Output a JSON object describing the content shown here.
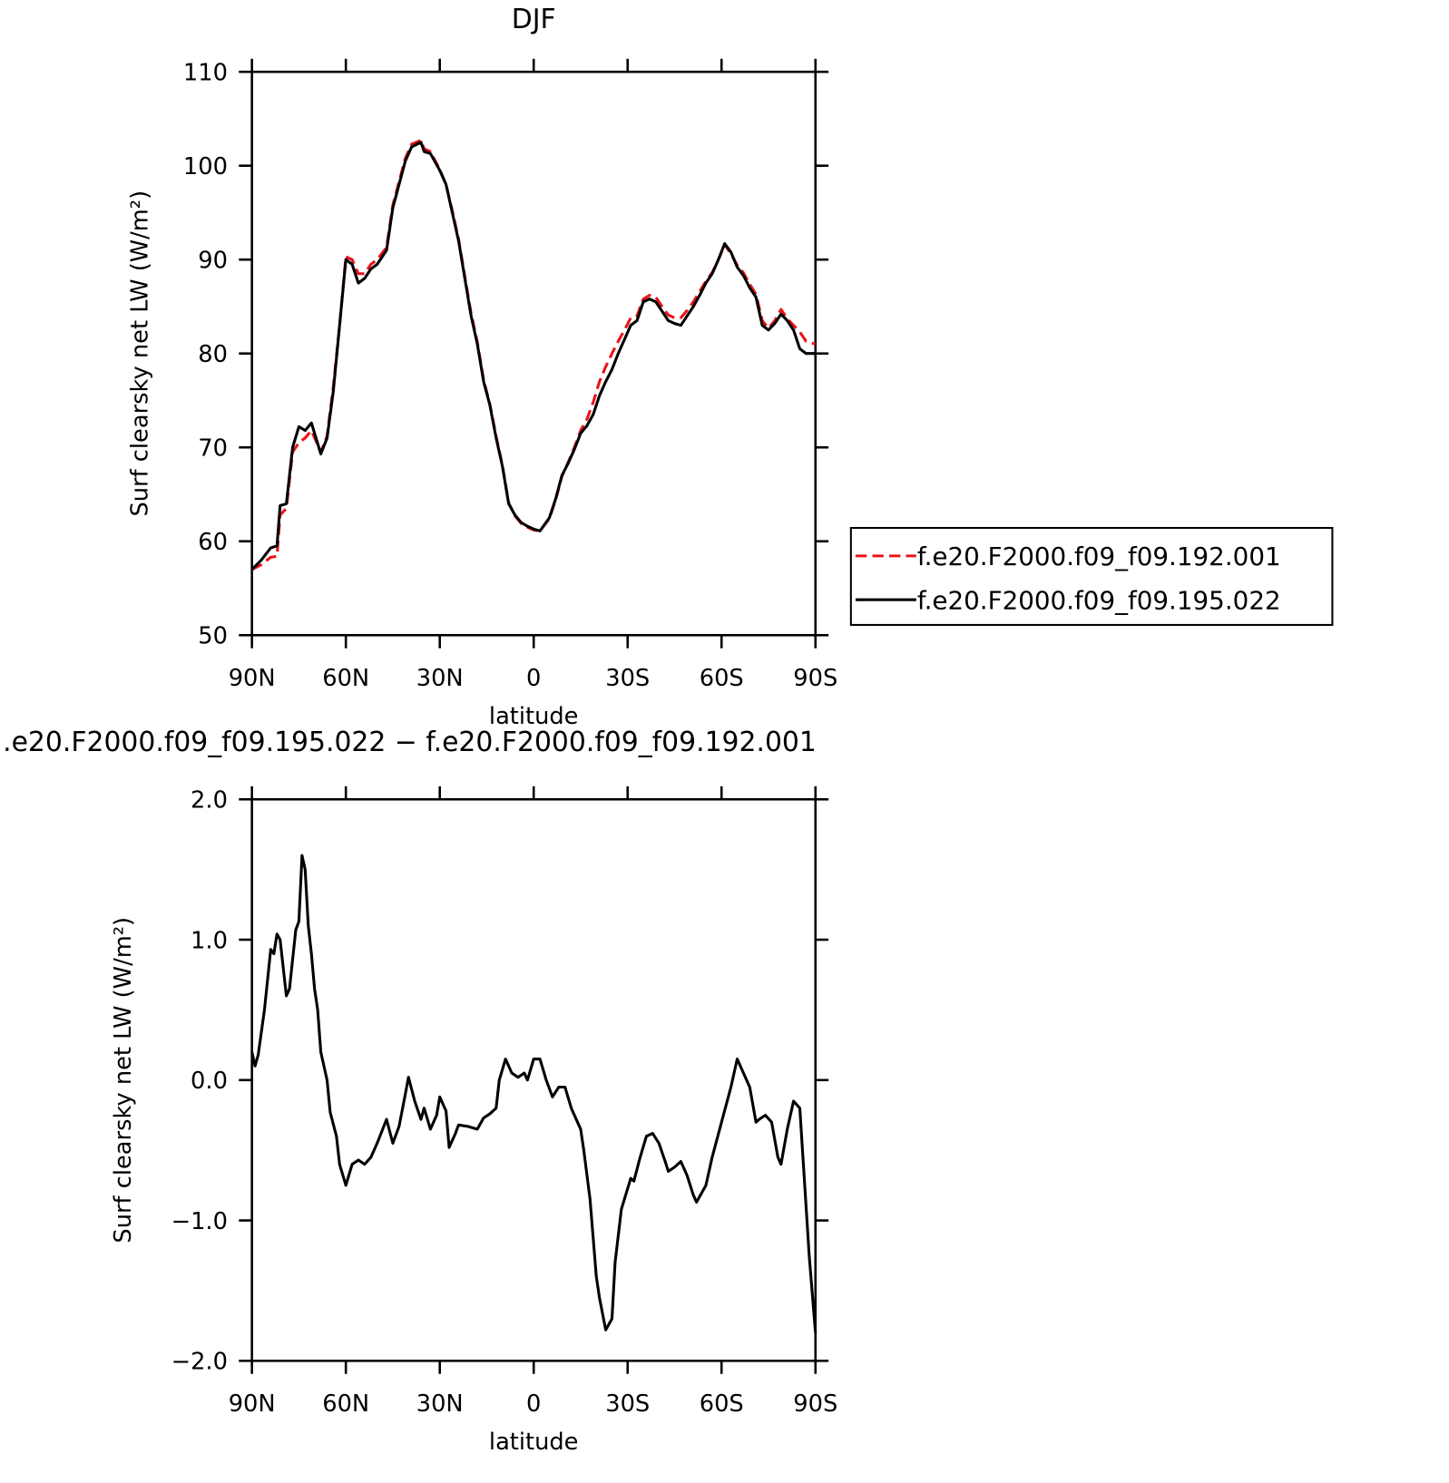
{
  "chart_data": [
    {
      "type": "line",
      "title": "DJF",
      "xlabel": "latitude",
      "ylabel": "Surf clearsky net LW (W/m²)",
      "xlim": [
        90,
        -90
      ],
      "xticks": [
        {
          "value": 90,
          "label": "90N"
        },
        {
          "value": 60,
          "label": "60N"
        },
        {
          "value": 30,
          "label": "30N"
        },
        0,
        {
          "value": -30,
          "label": "30S"
        },
        {
          "value": -60,
          "label": "60S"
        },
        {
          "value": -90,
          "label": "90S"
        }
      ],
      "ylim": [
        50,
        110
      ],
      "yticks": [
        50,
        60,
        70,
        80,
        90,
        100,
        110
      ],
      "legend": "outside-right",
      "x": [
        90,
        87,
        84,
        82,
        81,
        79,
        77,
        75,
        73,
        71,
        68,
        66,
        64,
        62,
        60,
        58,
        56,
        54,
        52,
        50,
        47,
        45,
        43,
        41,
        39,
        36,
        35,
        33,
        30,
        28,
        26,
        24,
        22,
        20,
        18,
        16,
        14,
        12,
        10,
        8,
        6,
        4,
        2,
        0,
        -2,
        -5,
        -7,
        -9,
        -11,
        -13,
        -15,
        -17,
        -19,
        -21,
        -23,
        -25,
        -27,
        -29,
        -31,
        -33,
        -35,
        -37,
        -39,
        -41,
        -43,
        -45,
        -47,
        -49,
        -51,
        -53,
        -55,
        -57,
        -59,
        -61,
        -63,
        -65,
        -67,
        -69,
        -71,
        -73,
        -75,
        -77,
        -79,
        -81,
        -83,
        -85,
        -87,
        -90
      ],
      "series": [
        {
          "name": "f.e20.F2000.f09_f09.192.001",
          "color": "#e8141a",
          "dashed": true,
          "values": [
            57,
            57.5,
            58.3,
            58.4,
            62.8,
            63.5,
            69.5,
            70.5,
            71,
            71.8,
            69.5,
            71.2,
            76.5,
            83,
            90.3,
            90,
            88.5,
            88.5,
            89.5,
            90,
            91.3,
            95.8,
            98.3,
            100.8,
            102.3,
            102.7,
            101.8,
            101.5,
            99.6,
            98,
            95.2,
            92.2,
            88.2,
            84.3,
            81.2,
            77.2,
            74.6,
            71.2,
            68.1,
            64.1,
            62.7,
            61.9,
            61.5,
            61.2,
            61.1,
            62.4,
            64.4,
            66.9,
            68.4,
            70,
            71.8,
            73,
            74.8,
            77,
            78.6,
            80,
            81.3,
            82.5,
            83.8,
            84,
            85.8,
            86.2,
            86,
            85,
            84.1,
            83.8,
            83.8,
            84.6,
            85.5,
            86.6,
            87.7,
            88.6,
            90,
            91.6,
            90.6,
            89.4,
            88.6,
            87.4,
            86.3,
            83.5,
            82.7,
            83.5,
            84.7,
            83.7,
            83,
            82.3,
            81.3,
            81
          ]
        },
        {
          "name": "f.e20.F2000.f09_f09.195.022",
          "color": "#000000",
          "dashed": false,
          "values": [
            57,
            58,
            59.3,
            59.5,
            63.8,
            64,
            70,
            72.2,
            71.8,
            72.6,
            69.3,
            71,
            76,
            83,
            90,
            89.5,
            87.5,
            88,
            89,
            89.5,
            91,
            95.5,
            98,
            100.5,
            102,
            102.5,
            101.5,
            101.3,
            99.5,
            98,
            95,
            92,
            88,
            84,
            81,
            77,
            74.5,
            71,
            68,
            64,
            62.8,
            62,
            61.6,
            61.3,
            61.1,
            62.5,
            64.5,
            67,
            68.3,
            69.8,
            71.5,
            72.3,
            73.5,
            75.5,
            77,
            78.3,
            80,
            81.5,
            83,
            83.5,
            85.5,
            85.8,
            85.5,
            84.5,
            83.5,
            83.2,
            83,
            84,
            85,
            86.2,
            87.5,
            88.5,
            90,
            91.7,
            90.8,
            89.2,
            88.3,
            87,
            86,
            83,
            82.5,
            83.2,
            84.2,
            83.5,
            82.5,
            80.5,
            80,
            80
          ]
        }
      ]
    },
    {
      "type": "line",
      "title": ".e20.F2000.f09_f09.195.022 − f.e20.F2000.f09_f09.192.001",
      "xlabel": "latitude",
      "ylabel": "Surf clearsky net LW (W/m²)",
      "xlim": [
        90,
        -90
      ],
      "xticks": [
        {
          "value": 90,
          "label": "90N"
        },
        {
          "value": 60,
          "label": "60N"
        },
        {
          "value": 30,
          "label": "30N"
        },
        0,
        {
          "value": -30,
          "label": "30S"
        },
        {
          "value": -60,
          "label": "60S"
        },
        {
          "value": -90,
          "label": "90S"
        }
      ],
      "ylim": [
        -2,
        2
      ],
      "yticks": [
        {
          "value": -2,
          "label": "−2.0"
        },
        {
          "value": -1,
          "label": "−1.0"
        },
        {
          "value": 0,
          "label": "0.0"
        },
        {
          "value": 1,
          "label": "1.0"
        },
        {
          "value": 2,
          "label": "2.0"
        }
      ],
      "x": [
        90,
        89,
        88,
        86,
        84,
        83,
        82,
        81,
        79,
        78,
        76,
        75,
        74,
        73,
        72,
        71,
        70,
        69,
        68,
        66,
        65,
        63,
        62,
        60,
        58,
        56,
        54,
        52,
        50,
        47,
        45,
        43,
        41,
        40,
        38,
        36,
        35,
        33,
        31,
        30,
        28,
        27,
        25,
        24,
        21,
        18,
        16,
        14,
        12,
        11,
        9,
        7,
        5,
        3,
        2,
        0,
        -2,
        -4,
        -6,
        -8,
        -10,
        -12,
        -15,
        -16,
        -18,
        -20,
        -21,
        -23,
        -25,
        -26,
        -28,
        -31,
        -32,
        -34,
        -36,
        -38,
        -40,
        -42,
        -43,
        -45,
        -47,
        -49,
        -51,
        -52,
        -55,
        -57,
        -60,
        -63,
        -65,
        -67,
        -69,
        -71,
        -72,
        -74,
        -76,
        -78,
        -79,
        -81,
        -83,
        -85,
        -87,
        -88,
        -90
      ],
      "series": [
        {
          "color": "#000000",
          "dashed": false,
          "values": [
            0.2,
            0.1,
            0.18,
            0.5,
            0.93,
            0.9,
            1.04,
            1.0,
            0.6,
            0.65,
            1.07,
            1.13,
            1.6,
            1.5,
            1.1,
            0.9,
            0.65,
            0.5,
            0.2,
            0.0,
            -0.23,
            -0.4,
            -0.6,
            -0.75,
            -0.6,
            -0.57,
            -0.6,
            -0.55,
            -0.45,
            -0.28,
            -0.45,
            -0.33,
            -0.1,
            0.02,
            -0.15,
            -0.28,
            -0.2,
            -0.35,
            -0.25,
            -0.12,
            -0.22,
            -0.48,
            -0.38,
            -0.32,
            -0.33,
            -0.35,
            -0.27,
            -0.24,
            -0.2,
            0.0,
            0.15,
            0.05,
            0.02,
            0.05,
            0.0,
            0.15,
            0.15,
            0.0,
            -0.12,
            -0.05,
            -0.05,
            -0.2,
            -0.35,
            -0.5,
            -0.85,
            -1.4,
            -1.55,
            -1.78,
            -1.7,
            -1.3,
            -0.92,
            -0.7,
            -0.72,
            -0.55,
            -0.4,
            -0.38,
            -0.45,
            -0.58,
            -0.65,
            -0.62,
            -0.58,
            -0.68,
            -0.82,
            -0.87,
            -0.75,
            -0.55,
            -0.3,
            -0.05,
            0.15,
            0.05,
            -0.05,
            -0.3,
            -0.28,
            -0.25,
            -0.3,
            -0.55,
            -0.6,
            -0.35,
            -0.15,
            -0.2,
            -0.9,
            -1.25,
            -1.8
          ]
        }
      ]
    }
  ]
}
